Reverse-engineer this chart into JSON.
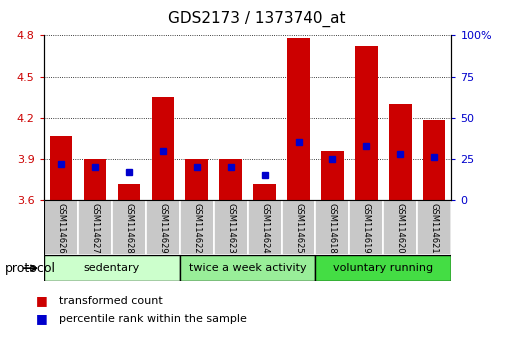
{
  "title": "GDS2173 / 1373740_at",
  "samples": [
    "GSM114626",
    "GSM114627",
    "GSM114628",
    "GSM114629",
    "GSM114622",
    "GSM114623",
    "GSM114624",
    "GSM114625",
    "GSM114618",
    "GSM114619",
    "GSM114620",
    "GSM114621"
  ],
  "bar_values": [
    4.07,
    3.9,
    3.72,
    4.35,
    3.9,
    3.9,
    3.72,
    4.78,
    3.96,
    4.72,
    4.3,
    4.18
  ],
  "blue_dot_values": [
    22,
    20,
    17,
    30,
    20,
    20,
    15,
    35,
    25,
    33,
    28,
    26
  ],
  "bar_bottom": 3.6,
  "ylim_left": [
    3.6,
    4.8
  ],
  "ylim_right": [
    0,
    100
  ],
  "yticks_left": [
    3.6,
    3.9,
    4.2,
    4.5,
    4.8
  ],
  "yticks_right": [
    0,
    25,
    50,
    75,
    100
  ],
  "ytick_labels_left": [
    "3.6",
    "3.9",
    "4.2",
    "4.5",
    "4.8"
  ],
  "ytick_labels_right": [
    "0",
    "25",
    "50",
    "75",
    "100%"
  ],
  "bar_color": "#cc0000",
  "dot_color": "#0000cc",
  "bg_color": "#ffffff",
  "sample_box_color": "#c8c8c8",
  "groups": [
    {
      "label": "sedentary",
      "start": 0,
      "end": 4,
      "color": "#ccffcc"
    },
    {
      "label": "twice a week activity",
      "start": 4,
      "end": 8,
      "color": "#99ee99"
    },
    {
      "label": "voluntary running",
      "start": 8,
      "end": 12,
      "color": "#44dd44"
    }
  ],
  "protocol_label": "protocol",
  "legend_items": [
    {
      "label": "transformed count",
      "color": "#cc0000"
    },
    {
      "label": "percentile rank within the sample",
      "color": "#0000cc"
    }
  ],
  "bar_width": 0.65,
  "tick_label_color_left": "#cc0000",
  "tick_label_color_right": "#0000cc",
  "title_fontsize": 11,
  "tick_fontsize": 8,
  "sample_fontsize": 6,
  "legend_fontsize": 8,
  "protocol_fontsize": 9,
  "group_fontsize": 8
}
